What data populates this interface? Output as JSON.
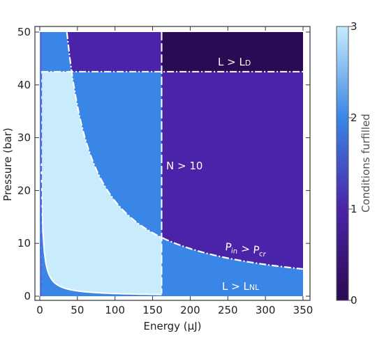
{
  "chart_data": {
    "type": "heatmap",
    "xlabel": "Energy (μJ)",
    "ylabel": "Pressure (bar)",
    "xlim": [
      0,
      350
    ],
    "ylim": [
      0,
      50
    ],
    "x_ticks": [
      0,
      50,
      100,
      150,
      200,
      250,
      300,
      350
    ],
    "y_ticks": [
      0,
      10,
      20,
      30,
      40,
      50
    ],
    "colorbar": {
      "label": "Conditions furfilled",
      "range": [
        0,
        3
      ],
      "ticks": [
        0,
        1,
        2,
        3
      ],
      "colors": [
        "#2a0a52",
        "#4a23a8",
        "#3a86e6",
        "#c8ecfc"
      ]
    },
    "regions": [
      {
        "conditions": 3,
        "color": "#c8ecfc"
      },
      {
        "conditions": 2,
        "color": "#3a86e6"
      },
      {
        "conditions": 1,
        "color": "#4a23a8"
      },
      {
        "conditions": 0,
        "color": "#2a0a52"
      }
    ],
    "boundaries": [
      {
        "label_main": "L > L",
        "label_sub": "D",
        "type": "horizontal",
        "pressure": 42.5
      },
      {
        "label": "N > 10",
        "type": "vertical",
        "energy": 162
      },
      {
        "label_p1": "P",
        "label_p1_sub": "in",
        "label_mid": " > P",
        "label_p2_sub": "cr",
        "type": "hyperbola",
        "E_times_P": 1800
      },
      {
        "label_main": "L > L",
        "label_sub": "NL",
        "type": "hyperbola",
        "E_times_P": 50
      }
    ]
  }
}
